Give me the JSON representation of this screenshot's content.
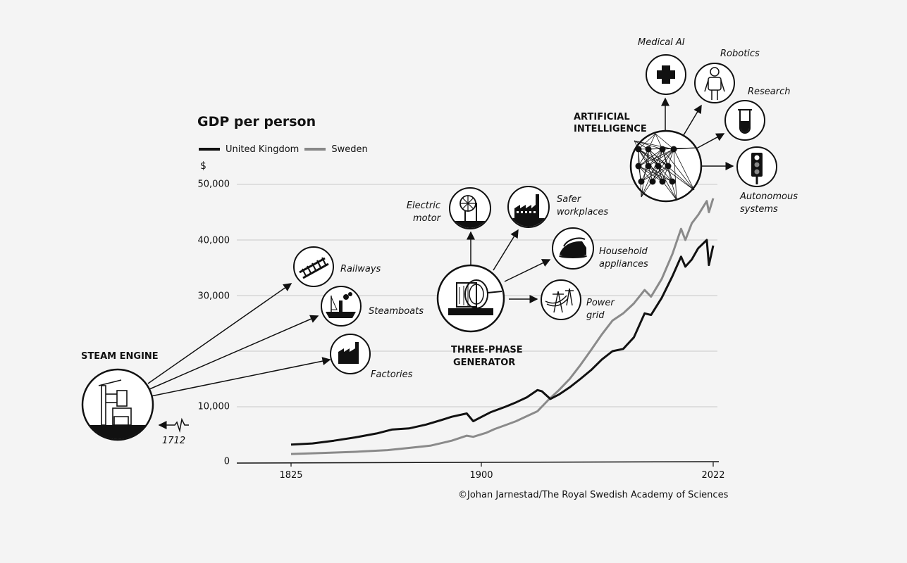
{
  "colors": {
    "uk": "#111111",
    "sweden": "#8a8a8a",
    "grid": "#c8c8c8",
    "background": "#f4f4f4"
  },
  "chart_data": {
    "type": "line",
    "title": "GDP per person",
    "ylabel": "$",
    "ylim": [
      0,
      50000
    ],
    "xlim": [
      1825,
      2022
    ],
    "yticks": [
      "0",
      "10,000",
      "30,000",
      "40,000",
      "50,000"
    ],
    "ytick_values": [
      0,
      10000,
      30000,
      40000,
      50000
    ],
    "gridlines": [
      10000,
      20000,
      30000,
      40000,
      50000
    ],
    "xticks": [
      "1825",
      "1900",
      "2022"
    ],
    "xtick_values": [
      1825,
      1900,
      2022
    ],
    "legend": "top-left",
    "series": [
      {
        "name": "United Kingdom",
        "points": [
          [
            1825,
            3200
          ],
          [
            1835,
            3400
          ],
          [
            1845,
            3900
          ],
          [
            1855,
            4500
          ],
          [
            1865,
            5200
          ],
          [
            1872,
            5900
          ],
          [
            1880,
            6100
          ],
          [
            1888,
            6800
          ],
          [
            1895,
            7600
          ],
          [
            1900,
            8200
          ],
          [
            1907,
            8800
          ],
          [
            1910,
            7400
          ],
          [
            1914,
            8200
          ],
          [
            1918,
            9000
          ],
          [
            1925,
            10000
          ],
          [
            1930,
            10800
          ],
          [
            1935,
            11700
          ],
          [
            1940,
            13000
          ],
          [
            1942,
            12800
          ],
          [
            1946,
            11400
          ],
          [
            1950,
            12200
          ],
          [
            1955,
            13500
          ],
          [
            1960,
            15000
          ],
          [
            1965,
            16600
          ],
          [
            1970,
            18500
          ],
          [
            1975,
            20000
          ],
          [
            1980,
            20400
          ],
          [
            1985,
            22500
          ],
          [
            1990,
            26800
          ],
          [
            1993,
            26500
          ],
          [
            1998,
            29600
          ],
          [
            2003,
            33500
          ],
          [
            2007,
            37000
          ],
          [
            2009,
            35200
          ],
          [
            2012,
            36500
          ],
          [
            2015,
            38500
          ],
          [
            2019,
            40000
          ],
          [
            2020,
            35500
          ],
          [
            2022,
            39000
          ]
        ]
      },
      {
        "name": "Sweden",
        "points": [
          [
            1825,
            1500
          ],
          [
            1840,
            1700
          ],
          [
            1855,
            1900
          ],
          [
            1870,
            2200
          ],
          [
            1880,
            2600
          ],
          [
            1890,
            3000
          ],
          [
            1900,
            3900
          ],
          [
            1907,
            4800
          ],
          [
            1910,
            4600
          ],
          [
            1916,
            5300
          ],
          [
            1920,
            6000
          ],
          [
            1925,
            6700
          ],
          [
            1930,
            7400
          ],
          [
            1935,
            8300
          ],
          [
            1940,
            9200
          ],
          [
            1945,
            11200
          ],
          [
            1950,
            13000
          ],
          [
            1955,
            15000
          ],
          [
            1960,
            17500
          ],
          [
            1965,
            20200
          ],
          [
            1970,
            23000
          ],
          [
            1975,
            25500
          ],
          [
            1980,
            26800
          ],
          [
            1985,
            28600
          ],
          [
            1990,
            31000
          ],
          [
            1993,
            29800
          ],
          [
            1998,
            33000
          ],
          [
            2003,
            37500
          ],
          [
            2007,
            42000
          ],
          [
            2009,
            40000
          ],
          [
            2012,
            43000
          ],
          [
            2015,
            44500
          ],
          [
            2019,
            47000
          ],
          [
            2020,
            45000
          ],
          [
            2022,
            47500
          ]
        ]
      }
    ],
    "annotations": [
      {
        "year": 1712,
        "label": "1712"
      }
    ]
  },
  "labels": {
    "steam_engine": "STEAM ENGINE",
    "railways": "Railways",
    "steamboats": "Steamboats",
    "factories": "Factories",
    "three_phase_line1": "THREE-PHASE",
    "three_phase_line2": "GENERATOR",
    "electric_motor_line1": "Electric",
    "electric_motor_line2": "motor",
    "safer_line1": "Safer",
    "safer_line2": "workplaces",
    "household_line1": "Household",
    "household_line2": "appliances",
    "power_line1": "Power",
    "power_line2": "grid",
    "ai_line1": "ARTIFICIAL",
    "ai_line2": "INTELLIGENCE",
    "medical_ai": "Medical AI",
    "robotics": "Robotics",
    "research": "Research",
    "autonomous_line1": "Autonomous",
    "autonomous_line2": "systems",
    "year_1712": "1712"
  },
  "credit": "©Johan Jarnestad/The Royal Swedish Academy of Sciences"
}
